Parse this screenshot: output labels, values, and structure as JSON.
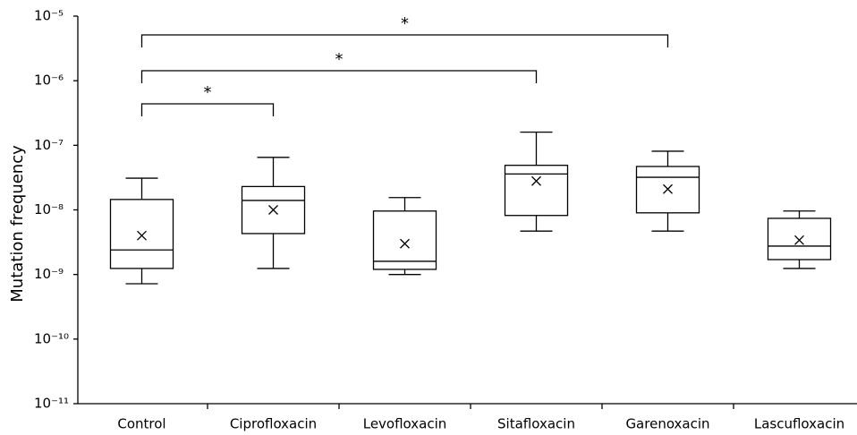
{
  "chart_data": {
    "type": "box",
    "y_label": "Mutation frequency",
    "log_scale": true,
    "color": "#000000",
    "categories": [
      "Control",
      "Ciprofloxacin",
      "Levofloxacin",
      "Sitafloxacin",
      "Garenoxacin",
      "Lascufloxacin"
    ],
    "boxes": [
      {
        "whisker_low": 7.2e-10,
        "q1": 1.24e-09,
        "median": 2.4e-09,
        "q3": 1.45e-08,
        "whisker_high": 3.1e-08,
        "mean": 4e-09
      },
      {
        "whisker_low": 1.24e-09,
        "q1": 4.3e-09,
        "median": 1.4e-08,
        "q3": 2.3e-08,
        "whisker_high": 6.5e-08,
        "mean": 1e-08
      },
      {
        "whisker_low": 1e-09,
        "q1": 1.2e-09,
        "median": 1.6e-09,
        "q3": 9.6e-09,
        "whisker_high": 1.55e-08,
        "mean": 3e-09
      },
      {
        "whisker_low": 4.7e-09,
        "q1": 8.2e-09,
        "median": 3.6e-08,
        "q3": 4.9e-08,
        "whisker_high": 1.6e-07,
        "mean": 2.8e-08
      },
      {
        "whisker_low": 4.7e-09,
        "q1": 9e-09,
        "median": 3.2e-08,
        "q3": 4.7e-08,
        "whisker_high": 8.1e-08,
        "mean": 2.1e-08
      },
      {
        "whisker_low": 1.24e-09,
        "q1": 1.7e-09,
        "median": 2.75e-09,
        "q3": 7.4e-09,
        "whisker_high": 9.6e-09,
        "mean": 3.4e-09
      }
    ],
    "annotations": [
      {
        "from": 0,
        "to": 1,
        "label": "*"
      },
      {
        "from": 0,
        "to": 3,
        "label": "*"
      },
      {
        "from": 0,
        "to": 4,
        "label": "*"
      }
    ],
    "ylim": [
      1e-11,
      1e-05
    ],
    "yticks": [
      {
        "value": 1e-11,
        "label": "10⁻¹¹"
      },
      {
        "value": 1e-10,
        "label": "10⁻¹⁰"
      },
      {
        "value": 1e-09,
        "label": "10⁻⁹"
      },
      {
        "value": 1e-08,
        "label": "10⁻⁸"
      },
      {
        "value": 1e-07,
        "label": "10⁻⁷"
      },
      {
        "value": 1e-06,
        "label": "10⁻⁶"
      },
      {
        "value": 1e-05,
        "label": "10⁻⁵"
      }
    ]
  }
}
